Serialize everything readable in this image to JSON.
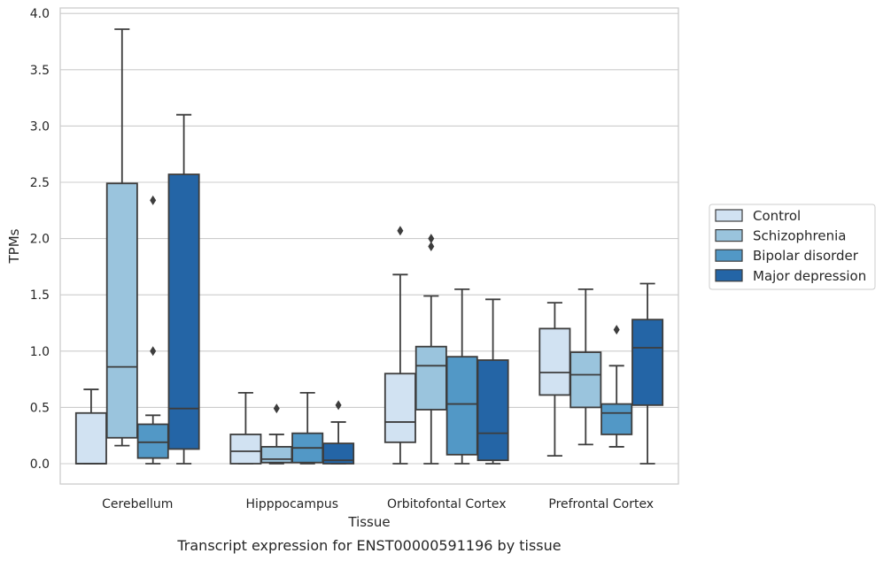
{
  "chart_data": {
    "type": "box",
    "xlabel": "Tissue",
    "ylabel": "TPMs",
    "caption": "Transcript expression for ENST00000591196 by tissue",
    "ylim": [
      -0.18,
      4.05
    ],
    "yticks": [
      "0.0",
      "0.5",
      "1.0",
      "1.5",
      "2.0",
      "2.5",
      "3.0",
      "3.5",
      "4.0"
    ],
    "grid": "horizontal",
    "legend_position": "right",
    "categories": [
      "Cerebellum",
      "Hipppocampus",
      "Orbitofontal Cortex",
      "Prefrontal Cortex"
    ],
    "series": [
      {
        "name": "Control",
        "color": "#d1e2f2",
        "boxes": [
          {
            "whislo": 0.0,
            "q1": 0.0,
            "med": 0.0,
            "q3": 0.45,
            "whishi": 0.66,
            "fliers": []
          },
          {
            "whislo": 0.0,
            "q1": 0.0,
            "med": 0.11,
            "q3": 0.26,
            "whishi": 0.63,
            "fliers": []
          },
          {
            "whislo": 0.0,
            "q1": 0.19,
            "med": 0.37,
            "q3": 0.8,
            "whishi": 1.68,
            "fliers": [
              2.07
            ]
          },
          {
            "whislo": 0.07,
            "q1": 0.61,
            "med": 0.81,
            "q3": 1.2,
            "whishi": 1.43,
            "fliers": []
          }
        ]
      },
      {
        "name": "Schizophrenia",
        "color": "#9ac4dd",
        "boxes": [
          {
            "whislo": 0.16,
            "q1": 0.23,
            "med": 0.86,
            "q3": 2.49,
            "whishi": 3.86,
            "fliers": []
          },
          {
            "whislo": 0.0,
            "q1": 0.01,
            "med": 0.04,
            "q3": 0.15,
            "whishi": 0.26,
            "fliers": [
              0.49
            ]
          },
          {
            "whislo": 0.0,
            "q1": 0.48,
            "med": 0.87,
            "q3": 1.04,
            "whishi": 1.49,
            "fliers": [
              1.93,
              2.0
            ]
          },
          {
            "whislo": 0.17,
            "q1": 0.5,
            "med": 0.79,
            "q3": 0.99,
            "whishi": 1.55,
            "fliers": []
          }
        ]
      },
      {
        "name": "Bipolar disorder",
        "color": "#5298c6",
        "boxes": [
          {
            "whislo": 0.0,
            "q1": 0.05,
            "med": 0.19,
            "q3": 0.35,
            "whishi": 0.43,
            "fliers": [
              1.0,
              2.34
            ]
          },
          {
            "whislo": 0.0,
            "q1": 0.01,
            "med": 0.14,
            "q3": 0.27,
            "whishi": 0.63,
            "fliers": []
          },
          {
            "whislo": 0.0,
            "q1": 0.08,
            "med": 0.53,
            "q3": 0.95,
            "whishi": 1.55,
            "fliers": []
          },
          {
            "whislo": 0.15,
            "q1": 0.26,
            "med": 0.45,
            "q3": 0.53,
            "whishi": 0.87,
            "fliers": [
              1.19
            ]
          }
        ]
      },
      {
        "name": "Major depression",
        "color": "#2465a6",
        "boxes": [
          {
            "whislo": 0.0,
            "q1": 0.13,
            "med": 0.49,
            "q3": 2.57,
            "whishi": 3.1,
            "fliers": []
          },
          {
            "whislo": 0.0,
            "q1": 0.0,
            "med": 0.03,
            "q3": 0.18,
            "whishi": 0.37,
            "fliers": [
              0.52
            ]
          },
          {
            "whislo": 0.0,
            "q1": 0.03,
            "med": 0.27,
            "q3": 0.92,
            "whishi": 1.46,
            "fliers": []
          },
          {
            "whislo": 0.0,
            "q1": 0.52,
            "med": 1.03,
            "q3": 1.28,
            "whishi": 1.6,
            "fliers": []
          }
        ]
      }
    ]
  }
}
